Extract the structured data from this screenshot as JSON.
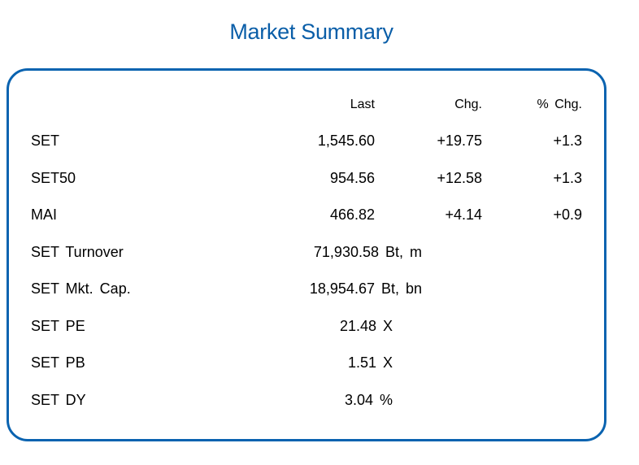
{
  "title": "Market Summary",
  "accent_color": "#0a63b0",
  "headers": {
    "last": "Last",
    "chg": "Chg.",
    "pct_chg": "% Chg."
  },
  "indices": [
    {
      "name": "SET",
      "last": "1,545.60",
      "chg": "+19.75",
      "pct_chg": "+1.3"
    },
    {
      "name": "SET50",
      "last": "954.56",
      "chg": "+12.58",
      "pct_chg": "+1.3"
    },
    {
      "name": "MAI",
      "last": "466.82",
      "chg": "+4.14",
      "pct_chg": "+0.9"
    }
  ],
  "stats": [
    {
      "name": "SET Turnover",
      "value": "71,930.58 Bt, m"
    },
    {
      "name": "SET Mkt. Cap.",
      "value": "18,954.67 Bt, bn"
    },
    {
      "name": "SET PE",
      "value": "21.48 X"
    },
    {
      "name": "SET PB",
      "value": "1.51 X"
    },
    {
      "name": "SET DY",
      "value": "3.04 %"
    }
  ]
}
